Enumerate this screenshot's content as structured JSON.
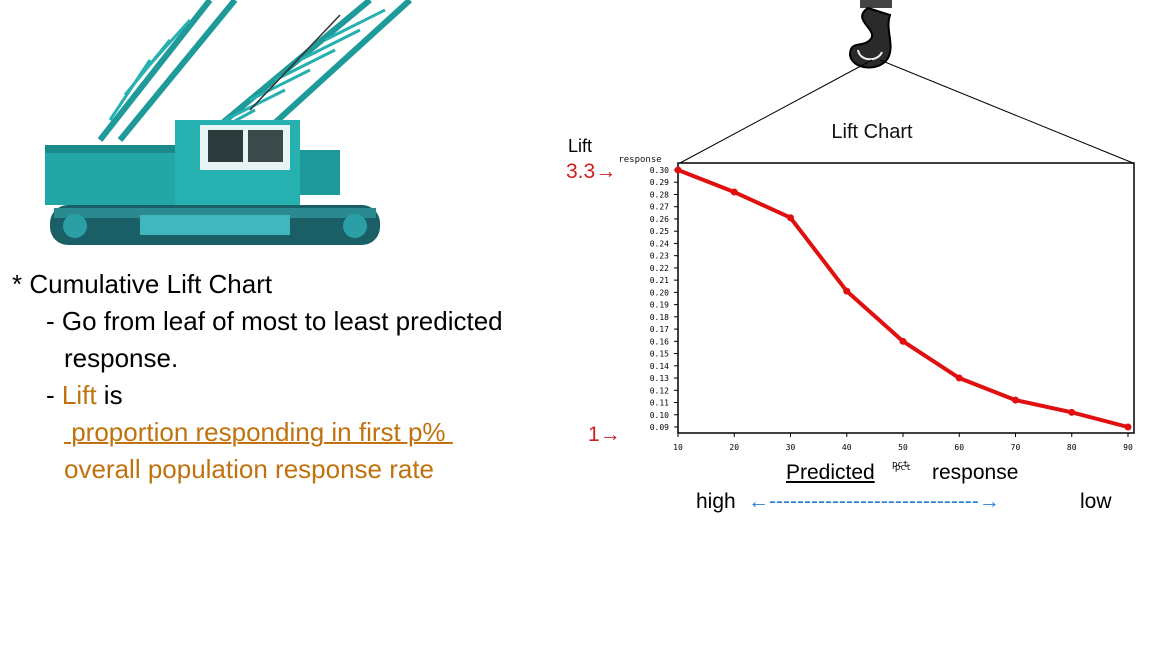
{
  "annotations": {
    "lift_label": "Lift",
    "top_marker": "3.3→",
    "bottom_marker": "1→"
  },
  "bullets": {
    "heading": "* Cumulative Lift Chart",
    "sub1_line1": "- Go from leaf of most to least predicted",
    "sub1_line2": "response.",
    "sub2_prefix": "- ",
    "sub2_lift": "Lift",
    "sub2_suffix": " is",
    "numerator": " proportion responding in first p% ",
    "denominator": "overall population response rate"
  },
  "footer": {
    "predicted": "Predicted",
    "pct": "pct",
    "response": "response",
    "high": "high",
    "arrow": "←------------------------------→",
    "low": "low"
  },
  "colors": {
    "line": "#e01010",
    "orange": "#c0720f",
    "arrow_blue": "#2a7fd4",
    "crane_teal": "#22a6a6"
  },
  "chart_data": {
    "type": "line",
    "title": "Lift Chart",
    "ylabel": "response",
    "xlabel": "pct",
    "x": [
      10,
      20,
      30,
      40,
      50,
      60,
      70,
      80,
      90
    ],
    "series": [
      {
        "values": [
          0.3,
          0.282,
          0.261,
          0.201,
          0.16,
          0.13,
          0.112,
          0.102,
          0.09
        ]
      }
    ],
    "yticks": [
      "0.30",
      "0.29",
      "0.28",
      "0.27",
      "0.26",
      "0.25",
      "0.24",
      "0.23",
      "0.22",
      "0.21",
      "0.20",
      "0.19",
      "0.18",
      "0.17",
      "0.16",
      "0.15",
      "0.14",
      "0.13",
      "0.12",
      "0.11",
      "0.10",
      "0.09"
    ],
    "xticks": [
      "10",
      "20",
      "30",
      "40",
      "50",
      "60",
      "70",
      "80",
      "90"
    ],
    "xlim": [
      10,
      90
    ],
    "ylim": [
      0.09,
      0.3
    ],
    "grid": false
  }
}
